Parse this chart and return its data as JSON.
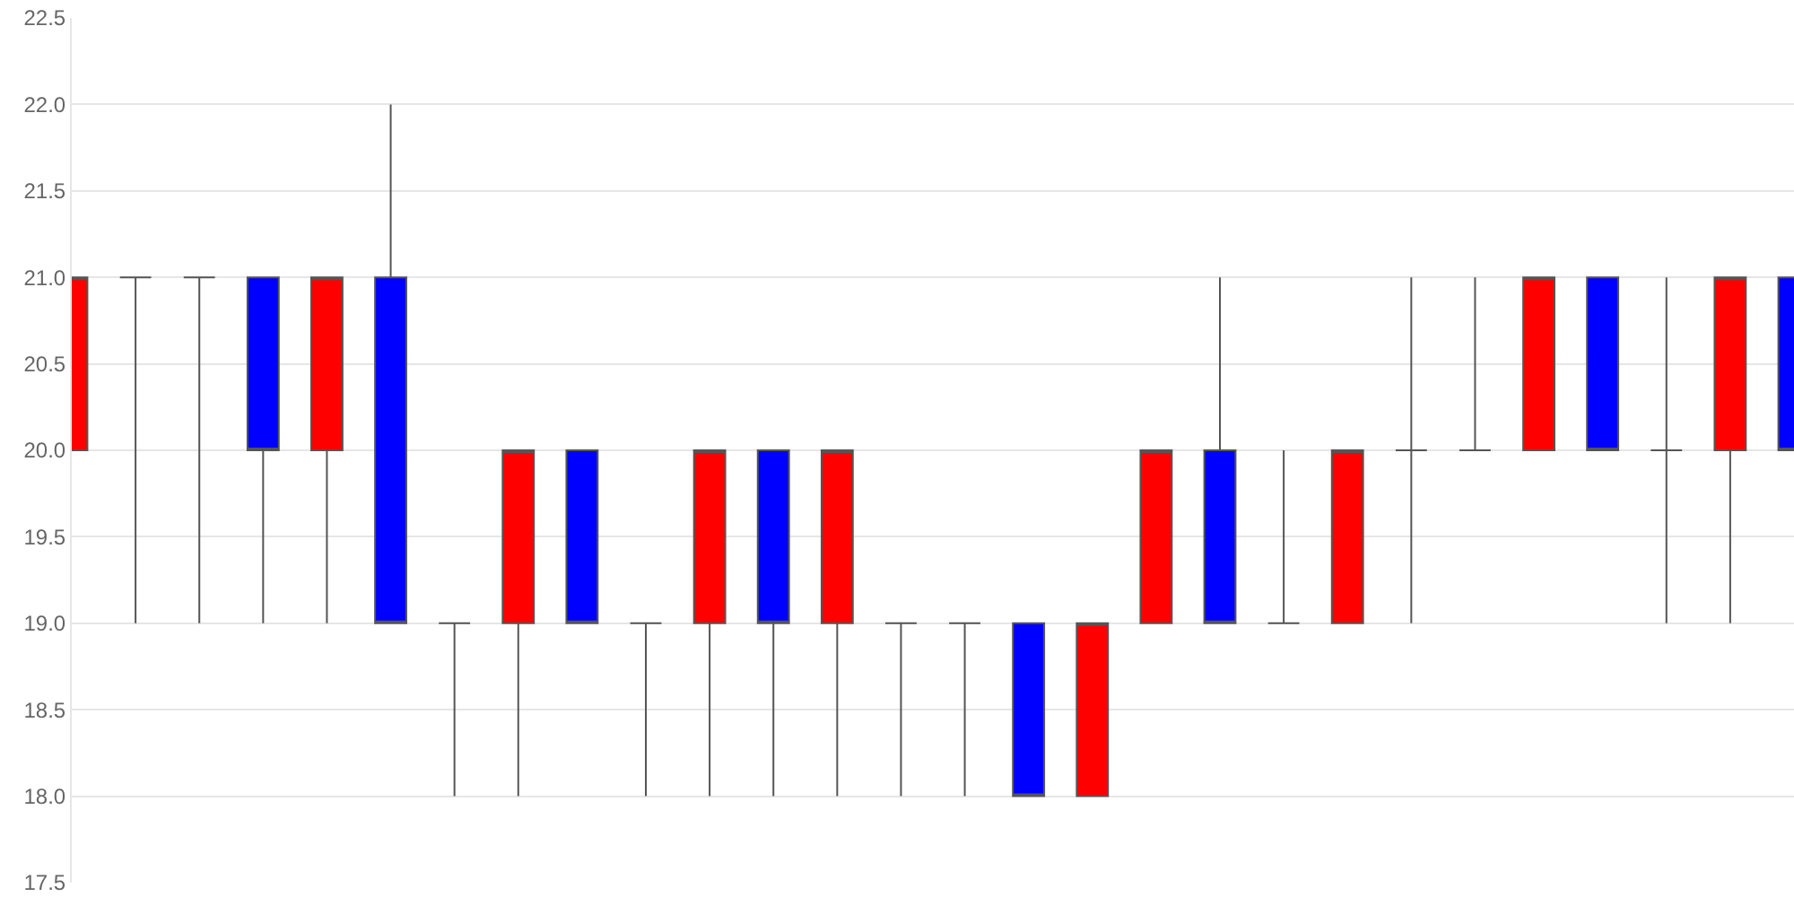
{
  "chart_data": {
    "type": "candlestick",
    "categories": [
      null,
      null,
      null,
      null,
      null,
      null,
      null,
      null,
      null,
      null,
      null,
      null,
      null,
      null,
      null,
      null,
      null,
      null,
      null,
      null,
      null,
      null,
      null,
      null,
      null,
      null,
      null,
      null
    ],
    "ohlc": [
      [
        20,
        21,
        20,
        21
      ],
      [
        21,
        21,
        19,
        21
      ],
      [
        21,
        21,
        19,
        21
      ],
      [
        21,
        21,
        19,
        20
      ],
      [
        20,
        21,
        19,
        21
      ],
      [
        21,
        22,
        19,
        19
      ],
      [
        19,
        19,
        18,
        19
      ],
      [
        19,
        20,
        18,
        20
      ],
      [
        20,
        20,
        19,
        19
      ],
      [
        19,
        19,
        18,
        19
      ],
      [
        19,
        20,
        18,
        20
      ],
      [
        20,
        20,
        18,
        19
      ],
      [
        19,
        20,
        18,
        20
      ],
      [
        19,
        19,
        18,
        19
      ],
      [
        19,
        19,
        18,
        19
      ],
      [
        19,
        19,
        18,
        18
      ],
      [
        18,
        19,
        18,
        19
      ],
      [
        19,
        20,
        19,
        20
      ],
      [
        20,
        21,
        19,
        19
      ],
      [
        19,
        20,
        19,
        19
      ],
      [
        19,
        20,
        19,
        20
      ],
      [
        20,
        21,
        19,
        20
      ],
      [
        20,
        21,
        20,
        20
      ],
      [
        20,
        21,
        20,
        21
      ],
      [
        21,
        21,
        20,
        20
      ],
      [
        20,
        21,
        19,
        20
      ],
      [
        20,
        21,
        19,
        21
      ],
      [
        21,
        21,
        20,
        20
      ]
    ],
    "colors": [
      "#ff0000",
      null,
      null,
      "#0000ff",
      "#ff0000",
      "#0000ff",
      null,
      "#ff0000",
      "#0000ff",
      null,
      "#ff0000",
      "#0000ff",
      "#ff0000",
      null,
      null,
      "#0000ff",
      "#ff0000",
      "#ff0000",
      "#0000ff",
      null,
      "#ff0000",
      null,
      null,
      "#ff0000",
      "#0000ff",
      null,
      "#ff0000",
      "#0000ff"
    ],
    "ylim": [
      17.5,
      22.5
    ],
    "yticks": [
      {
        "value": 17.5,
        "label": "17.5"
      },
      {
        "value": 18,
        "label": "18.0"
      },
      {
        "value": 18.5,
        "label": "18.5"
      },
      {
        "value": 19,
        "label": "19.0"
      },
      {
        "value": 19.5,
        "label": "19.5"
      },
      {
        "value": 20,
        "label": "20.0"
      },
      {
        "value": 20.5,
        "label": "20.5"
      },
      {
        "value": 21,
        "label": "21.0"
      },
      {
        "value": 21.5,
        "label": "21.5"
      },
      {
        "value": 22,
        "label": "22.0"
      },
      {
        "value": 22.5,
        "label": "22.5"
      }
    ],
    "grid": "y"
  }
}
